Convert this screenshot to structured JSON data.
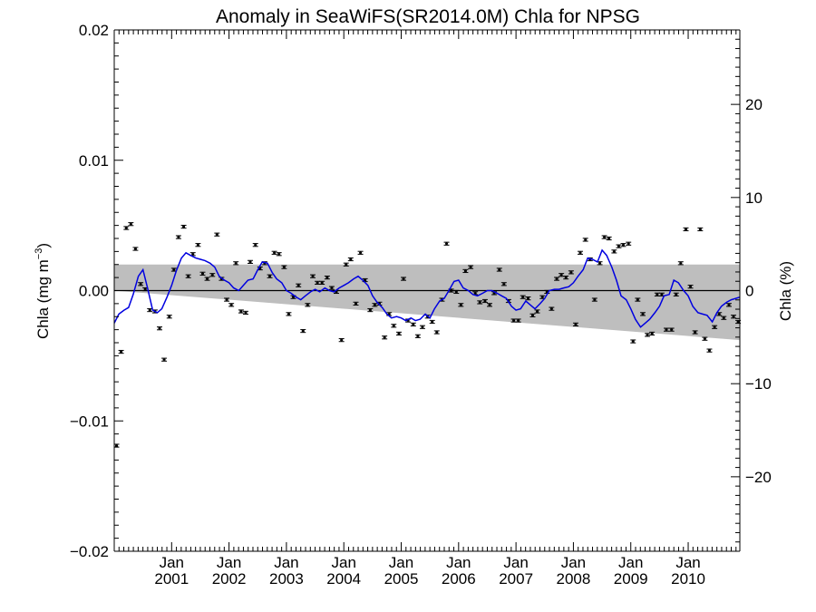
{
  "chart_data": {
    "type": "line",
    "title": "Anomaly in SeaWiFS(SR2014.0M) Chla for NPSG",
    "ylabel": "Chla (mg m",
    "ylabel_unit_sup": "−3",
    "ylabel_close": ")",
    "y2label": "Chla (%)",
    "ylim": [
      -0.02,
      0.02
    ],
    "y2lim": [
      -28,
      28
    ],
    "xlim": [
      2000.0,
      2010.9
    ],
    "y_ticks": [
      {
        "v": 0.02,
        "t": "0.02"
      },
      {
        "v": 0.01,
        "t": "0.01"
      },
      {
        "v": 0.0,
        "t": "0.00"
      },
      {
        "v": -0.01,
        "t": "−0.01"
      },
      {
        "v": -0.02,
        "t": "−0.02"
      }
    ],
    "y2_ticks": [
      {
        "v": 20,
        "t": "20"
      },
      {
        "v": 10,
        "t": "10"
      },
      {
        "v": 0,
        "t": "0"
      },
      {
        "v": -10,
        "t": "−10"
      },
      {
        "v": -20,
        "t": "−20"
      }
    ],
    "x_ticks": [
      {
        "v": 2001.0,
        "month": "Jan",
        "year": "2001"
      },
      {
        "v": 2002.0,
        "month": "Jan",
        "year": "2002"
      },
      {
        "v": 2003.0,
        "month": "Jan",
        "year": "2003"
      },
      {
        "v": 2004.0,
        "month": "Jan",
        "year": "2004"
      },
      {
        "v": 2005.0,
        "month": "Jan",
        "year": "2005"
      },
      {
        "v": 2006.0,
        "month": "Jan",
        "year": "2006"
      },
      {
        "v": 2007.0,
        "month": "Jan",
        "year": "2007"
      },
      {
        "v": 2008.0,
        "month": "Jan",
        "year": "2008"
      },
      {
        "v": 2009.0,
        "month": "Jan",
        "year": "2009"
      },
      {
        "v": 2010.0,
        "month": "Jan",
        "year": "2010"
      }
    ],
    "grey_band": {
      "upper": [
        [
          2000.0,
          0.002
        ],
        [
          2010.9,
          0.002
        ]
      ],
      "lower": [
        [
          2000.0,
          0.0
        ],
        [
          2010.9,
          -0.0038
        ]
      ]
    },
    "zero_line": 0.0,
    "series": [
      {
        "kind": "monthly anomaly with error bars",
        "color": "#000000",
        "points": [
          [
            2000.04,
            -0.0119
          ],
          [
            2000.12,
            -0.0047
          ],
          [
            2000.21,
            0.0048
          ],
          [
            2000.29,
            0.0051
          ],
          [
            2000.37,
            0.0032
          ],
          [
            2000.46,
            0.0005
          ],
          [
            2000.54,
            0.0001
          ],
          [
            2000.62,
            -0.0015
          ],
          [
            2000.71,
            -0.0016
          ],
          [
            2000.79,
            -0.0029
          ],
          [
            2000.87,
            -0.0053
          ],
          [
            2000.96,
            -0.002
          ],
          [
            2001.04,
            0.0016
          ],
          [
            2001.12,
            0.0041
          ],
          [
            2001.21,
            0.0049
          ],
          [
            2001.29,
            0.0011
          ],
          [
            2001.37,
            0.0028
          ],
          [
            2001.46,
            0.0035
          ],
          [
            2001.54,
            0.0013
          ],
          [
            2001.62,
            0.0009
          ],
          [
            2001.71,
            0.0012
          ],
          [
            2001.79,
            0.0043
          ],
          [
            2001.87,
            0.0009
          ],
          [
            2001.96,
            -0.0007
          ],
          [
            2002.04,
            -0.0011
          ],
          [
            2002.12,
            0.0021
          ],
          [
            2002.21,
            -0.0016
          ],
          [
            2002.29,
            -0.0017
          ],
          [
            2002.37,
            0.0022
          ],
          [
            2002.46,
            0.0035
          ],
          [
            2002.54,
            0.0017
          ],
          [
            2002.62,
            0.0021
          ],
          [
            2002.71,
            0.0011
          ],
          [
            2002.79,
            0.0029
          ],
          [
            2002.87,
            0.0028
          ],
          [
            2002.96,
            0.0018
          ],
          [
            2003.04,
            -0.0018
          ],
          [
            2003.12,
            -0.0005
          ],
          [
            2003.21,
            0.0004
          ],
          [
            2003.29,
            -0.0031
          ],
          [
            2003.37,
            -0.0011
          ],
          [
            2003.46,
            0.0011
          ],
          [
            2003.54,
            0.0006
          ],
          [
            2003.62,
            0.0006
          ],
          [
            2003.71,
            0.001
          ],
          [
            2003.79,
            0.0002
          ],
          [
            2003.87,
            -0.0001
          ],
          [
            2003.96,
            -0.0038
          ],
          [
            2004.04,
            0.002
          ],
          [
            2004.12,
            0.0024
          ],
          [
            2004.21,
            -0.001
          ],
          [
            2004.29,
            0.0029
          ],
          [
            2004.37,
            0.0008
          ],
          [
            2004.46,
            -0.0015
          ],
          [
            2004.54,
            -0.0011
          ],
          [
            2004.62,
            -0.001
          ],
          [
            2004.71,
            -0.0036
          ],
          [
            2004.79,
            -0.0018
          ],
          [
            2004.87,
            -0.0027
          ],
          [
            2004.96,
            -0.0033
          ],
          [
            2005.04,
            0.0009
          ],
          [
            2005.12,
            -0.0023
          ],
          [
            2005.21,
            -0.0026
          ],
          [
            2005.29,
            -0.0035
          ],
          [
            2005.37,
            -0.0028
          ],
          [
            2005.46,
            -0.002
          ],
          [
            2005.54,
            -0.0024
          ],
          [
            2005.62,
            -0.0032
          ],
          [
            2005.71,
            -0.0007
          ],
          [
            2005.79,
            0.0036
          ],
          [
            2005.87,
            0.0
          ],
          [
            2005.96,
            -0.0001
          ],
          [
            2006.04,
            -0.0011
          ],
          [
            2006.12,
            0.0015
          ],
          [
            2006.21,
            0.0018
          ],
          [
            2006.29,
            -0.0002
          ],
          [
            2006.37,
            -0.0009
          ],
          [
            2006.46,
            -0.0008
          ],
          [
            2006.54,
            -0.0011
          ],
          [
            2006.62,
            -0.0002
          ],
          [
            2006.71,
            0.0016
          ],
          [
            2006.79,
            0.0005
          ],
          [
            2006.87,
            -0.0008
          ],
          [
            2006.96,
            -0.0023
          ],
          [
            2007.04,
            -0.0023
          ],
          [
            2007.12,
            -0.0005
          ],
          [
            2007.21,
            -0.0006
          ],
          [
            2007.29,
            -0.0019
          ],
          [
            2007.37,
            -0.0016
          ],
          [
            2007.46,
            -0.0005
          ],
          [
            2007.54,
            -0.0001
          ],
          [
            2007.62,
            -0.0014
          ],
          [
            2007.71,
            0.0009
          ],
          [
            2007.79,
            0.0012
          ],
          [
            2007.87,
            0.001
          ],
          [
            2007.96,
            0.0014
          ],
          [
            2008.04,
            -0.0026
          ],
          [
            2008.12,
            0.0029
          ],
          [
            2008.21,
            0.0039
          ],
          [
            2008.29,
            0.0024
          ],
          [
            2008.37,
            -0.0007
          ],
          [
            2008.46,
            0.0021
          ],
          [
            2008.54,
            0.0041
          ],
          [
            2008.62,
            0.004
          ],
          [
            2008.71,
            0.003
          ],
          [
            2008.79,
            0.0034
          ],
          [
            2008.87,
            0.0035
          ],
          [
            2008.96,
            0.0036
          ],
          [
            2009.04,
            -0.0039
          ],
          [
            2009.12,
            -0.0007
          ],
          [
            2009.21,
            -0.0018
          ],
          [
            2009.29,
            -0.0034
          ],
          [
            2009.37,
            -0.0033
          ],
          [
            2009.46,
            -0.0003
          ],
          [
            2009.54,
            -0.0003
          ],
          [
            2009.62,
            -0.003
          ],
          [
            2009.71,
            -0.003
          ],
          [
            2009.79,
            -0.0003
          ],
          [
            2009.87,
            0.0021
          ],
          [
            2009.96,
            0.0047
          ],
          [
            2010.04,
            0.0003
          ],
          [
            2010.12,
            -0.0032
          ],
          [
            2010.21,
            0.0047
          ],
          [
            2010.29,
            -0.0037
          ],
          [
            2010.37,
            -0.0046
          ],
          [
            2010.46,
            -0.0028
          ],
          [
            2010.54,
            -0.0018
          ],
          [
            2010.62,
            -0.0021
          ],
          [
            2010.71,
            -0.0011
          ],
          [
            2010.79,
            -0.002
          ],
          [
            2010.87,
            -0.0024
          ]
        ],
        "error": 0.0001
      },
      {
        "kind": "smoothed anomaly line",
        "color": "#0000e0",
        "points": [
          [
            2000.0,
            -0.0025
          ],
          [
            2000.08,
            -0.0018
          ],
          [
            2000.17,
            -0.0015
          ],
          [
            2000.25,
            -0.0013
          ],
          [
            2000.33,
            -0.0003
          ],
          [
            2000.42,
            0.0011
          ],
          [
            2000.5,
            0.0016
          ],
          [
            2000.58,
            0.0002
          ],
          [
            2000.67,
            -0.0015
          ],
          [
            2000.75,
            -0.0017
          ],
          [
            2000.83,
            -0.0014
          ],
          [
            2000.92,
            -0.0005
          ],
          [
            2001.0,
            0.0004
          ],
          [
            2001.08,
            0.0015
          ],
          [
            2001.17,
            0.0025
          ],
          [
            2001.25,
            0.0029
          ],
          [
            2001.33,
            0.0027
          ],
          [
            2001.42,
            0.0025
          ],
          [
            2001.5,
            0.0024
          ],
          [
            2001.58,
            0.0023
          ],
          [
            2001.67,
            0.0021
          ],
          [
            2001.75,
            0.0018
          ],
          [
            2001.83,
            0.0011
          ],
          [
            2001.92,
            0.0008
          ],
          [
            2002.0,
            0.0006
          ],
          [
            2002.08,
            0.0002
          ],
          [
            2002.17,
            0.0
          ],
          [
            2002.25,
            0.0004
          ],
          [
            2002.33,
            0.0008
          ],
          [
            2002.42,
            0.0009
          ],
          [
            2002.5,
            0.0016
          ],
          [
            2002.58,
            0.0022
          ],
          [
            2002.67,
            0.0021
          ],
          [
            2002.75,
            0.0014
          ],
          [
            2002.83,
            0.0009
          ],
          [
            2002.92,
            0.0006
          ],
          [
            2003.0,
            0.0
          ],
          [
            2003.08,
            -0.0002
          ],
          [
            2003.17,
            -0.0005
          ],
          [
            2003.25,
            -0.0007
          ],
          [
            2003.33,
            -0.0004
          ],
          [
            2003.42,
            -0.0001
          ],
          [
            2003.5,
            0.0001
          ],
          [
            2003.58,
            -0.0001
          ],
          [
            2003.67,
            0.0002
          ],
          [
            2003.75,
            0.0
          ],
          [
            2003.83,
            -0.0001
          ],
          [
            2003.92,
            0.0002
          ],
          [
            2004.0,
            0.0004
          ],
          [
            2004.08,
            0.0006
          ],
          [
            2004.17,
            0.0009
          ],
          [
            2004.25,
            0.0011
          ],
          [
            2004.33,
            0.0008
          ],
          [
            2004.42,
            0.0004
          ],
          [
            2004.5,
            -0.0004
          ],
          [
            2004.58,
            -0.0009
          ],
          [
            2004.67,
            -0.0013
          ],
          [
            2004.75,
            -0.0018
          ],
          [
            2004.83,
            -0.0021
          ],
          [
            2004.92,
            -0.002
          ],
          [
            2005.0,
            -0.0021
          ],
          [
            2005.08,
            -0.0023
          ],
          [
            2005.17,
            -0.0021
          ],
          [
            2005.25,
            -0.0023
          ],
          [
            2005.33,
            -0.0022
          ],
          [
            2005.42,
            -0.0018
          ],
          [
            2005.5,
            -0.0021
          ],
          [
            2005.58,
            -0.0014
          ],
          [
            2005.67,
            -0.0008
          ],
          [
            2005.75,
            -0.0006
          ],
          [
            2005.83,
            0.0
          ],
          [
            2005.92,
            0.0007
          ],
          [
            2006.0,
            0.0008
          ],
          [
            2006.08,
            0.0002
          ],
          [
            2006.17,
            0.0
          ],
          [
            2006.25,
            -0.0003
          ],
          [
            2006.33,
            -0.0004
          ],
          [
            2006.42,
            -0.0002
          ],
          [
            2006.5,
            0.0
          ],
          [
            2006.58,
            0.0
          ],
          [
            2006.67,
            -0.0002
          ],
          [
            2006.75,
            -0.0004
          ],
          [
            2006.83,
            -0.0006
          ],
          [
            2006.92,
            -0.0012
          ],
          [
            2007.0,
            -0.0015
          ],
          [
            2007.08,
            -0.0014
          ],
          [
            2007.17,
            -0.0008
          ],
          [
            2007.25,
            -0.0011
          ],
          [
            2007.33,
            -0.0014
          ],
          [
            2007.42,
            -0.001
          ],
          [
            2007.5,
            -0.0006
          ],
          [
            2007.58,
            0.0
          ],
          [
            2007.67,
            0.0001
          ],
          [
            2007.75,
            0.0001
          ],
          [
            2007.83,
            0.0002
          ],
          [
            2007.92,
            0.0003
          ],
          [
            2008.0,
            0.0006
          ],
          [
            2008.08,
            0.0011
          ],
          [
            2008.17,
            0.0016
          ],
          [
            2008.25,
            0.0025
          ],
          [
            2008.33,
            0.0024
          ],
          [
            2008.42,
            0.0022
          ],
          [
            2008.5,
            0.0031
          ],
          [
            2008.58,
            0.0027
          ],
          [
            2008.67,
            0.0018
          ],
          [
            2008.75,
            0.0008
          ],
          [
            2008.83,
            -0.0004
          ],
          [
            2008.92,
            -0.0007
          ],
          [
            2009.0,
            -0.0014
          ],
          [
            2009.08,
            -0.0022
          ],
          [
            2009.17,
            -0.0028
          ],
          [
            2009.25,
            -0.0025
          ],
          [
            2009.33,
            -0.0022
          ],
          [
            2009.42,
            -0.0017
          ],
          [
            2009.5,
            -0.0012
          ],
          [
            2009.58,
            -0.0004
          ],
          [
            2009.67,
            -0.0003
          ],
          [
            2009.75,
            0.0008
          ],
          [
            2009.83,
            0.0006
          ],
          [
            2009.92,
            0.0
          ],
          [
            2010.0,
            -0.0004
          ],
          [
            2010.08,
            -0.0012
          ],
          [
            2010.17,
            -0.0017
          ],
          [
            2010.25,
            -0.0018
          ],
          [
            2010.33,
            -0.0019
          ],
          [
            2010.42,
            -0.0024
          ],
          [
            2010.5,
            -0.0017
          ],
          [
            2010.58,
            -0.0012
          ],
          [
            2010.67,
            -0.0009
          ],
          [
            2010.75,
            -0.0007
          ],
          [
            2010.83,
            -0.0006
          ],
          [
            2010.9,
            -0.0005
          ]
        ]
      }
    ]
  }
}
